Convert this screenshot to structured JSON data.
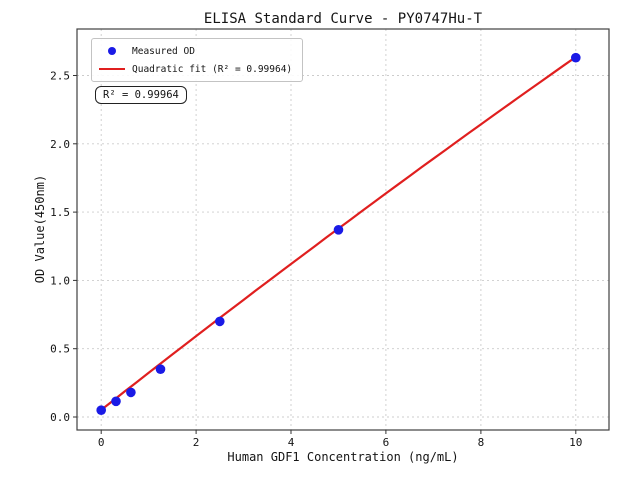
{
  "figure": {
    "background": "#ffffff"
  },
  "chart_data": {
    "type": "scatter",
    "title": "ELISA Standard Curve - PY0747Hu-T",
    "xlabel": "Human GDF1 Concentration (ng/mL)",
    "ylabel": "OD Value(450nm)",
    "xlim": [
      -0.51,
      10.7
    ],
    "ylim": [
      -0.095,
      2.84
    ],
    "x_ticks": [
      0,
      2,
      4,
      6,
      8,
      10
    ],
    "y_ticks": [
      0.0,
      0.5,
      1.0,
      1.5,
      2.0,
      2.5
    ],
    "grid": true,
    "legend_position": "upper left",
    "series": [
      {
        "name": "Measured OD",
        "kind": "scatter",
        "marker": "circle",
        "color": "#1a1ae6",
        "x": [
          0,
          0.312,
          0.625,
          1.25,
          2.5,
          5,
          10
        ],
        "y": [
          0.05,
          0.115,
          0.18,
          0.35,
          0.7,
          1.37,
          2.63
        ]
      },
      {
        "name": "Quadratic fit (R² = 0.99964)",
        "kind": "line",
        "color": "#e01f1f",
        "quadratic_coeffs": {
          "a": 0.052,
          "b": 0.2729,
          "c": -0.00146
        },
        "x_range": [
          0,
          10
        ]
      }
    ],
    "annotation": {
      "text": "R² = 0.99964"
    }
  }
}
